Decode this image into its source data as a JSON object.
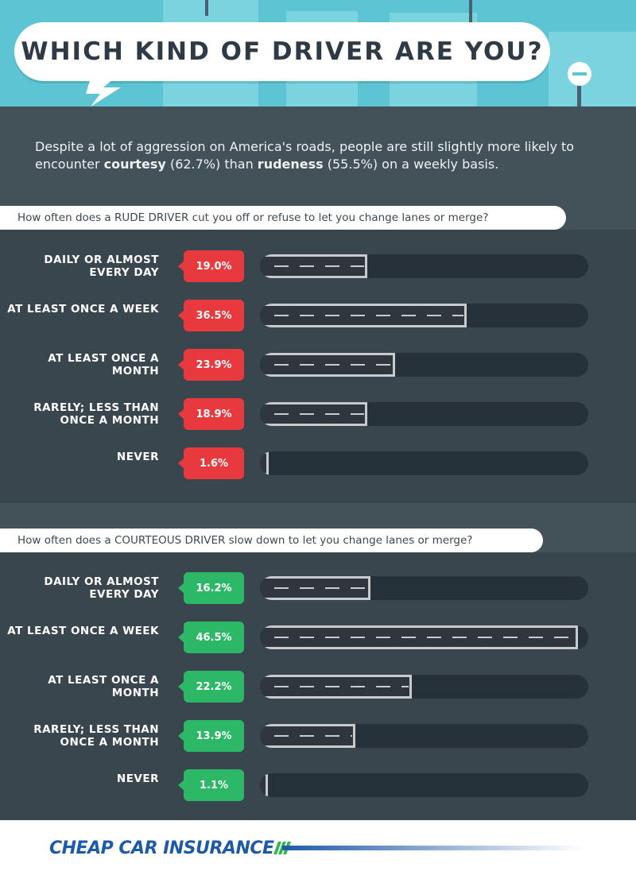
{
  "title": "WHICH KIND OF DRIVER ARE YOU?",
  "intro": {
    "text_before": "Despite a lot of aggression on America's roads, people are still slightly more likely to encounter ",
    "courtesy_word": "courtesy",
    "courtesy_pct": " (62.7%) than ",
    "rudeness_word": "rudeness",
    "rudeness_pct": " (55.5%) on a weekly basis."
  },
  "colors": {
    "rude_badge": "#e8393f",
    "courteous_badge": "#2cb866",
    "panel": "#435159",
    "chart_bg": "#3a464e",
    "sky": "#5cc4d3"
  },
  "chart_data": [
    {
      "type": "bar",
      "title": "How often does a RUDE DRIVER cut you off or refuse to let you change lanes or merge?",
      "categories": [
        "DAILY OR ALMOST EVERY DAY",
        "AT LEAST ONCE A WEEK",
        "AT LEAST ONCE A MONTH",
        "RARELY; LESS THAN ONCE A MONTH",
        "NEVER"
      ],
      "values": [
        19.0,
        36.5,
        23.9,
        18.9,
        1.6
      ],
      "value_labels": [
        "19.0%",
        "36.5%",
        "23.9%",
        "18.9%",
        "1.6%"
      ],
      "xlim": [
        0,
        58
      ],
      "orientation": "horizontal"
    },
    {
      "type": "bar",
      "title": "How often does a COURTEOUS DRIVER slow down to let you change lanes or merge?",
      "categories": [
        "DAILY OR ALMOST EVERY DAY",
        "AT LEAST ONCE A WEEK",
        "AT LEAST ONCE A MONTH",
        "RARELY; LESS THAN ONCE A MONTH",
        "NEVER"
      ],
      "values": [
        16.2,
        46.5,
        22.2,
        13.9,
        1.1
      ],
      "value_labels": [
        "16.2%",
        "46.5%",
        "22.2%",
        "13.9%",
        "1.1%"
      ],
      "xlim": [
        0,
        48
      ],
      "orientation": "horizontal"
    }
  ],
  "footer": {
    "logo_text": "CHEAP CAR INSURANCE",
    "logo_icon": "stripes-icon"
  }
}
